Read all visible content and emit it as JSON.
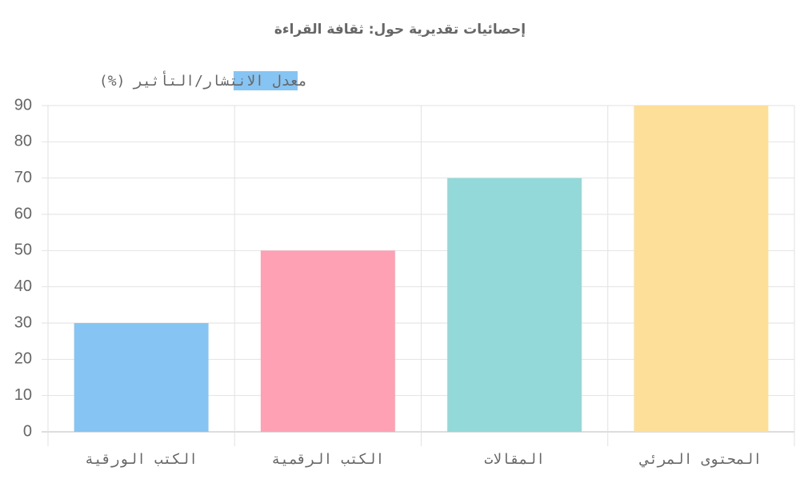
{
  "chart_data": {
    "type": "bar",
    "title": "إحصائيات تقديرية حول: ثقافة القراءة",
    "categories": [
      "الكتب الورقية",
      "الكتب الرقمية",
      "المقالات",
      "المحتوى المرئي"
    ],
    "series": [
      {
        "name": "معدل الانتشار/التأثير (%)",
        "colors": [
          "#86c5f3",
          "#fea1b5",
          "#94d9d9",
          "#fedf9a"
        ],
        "values": [
          30,
          50,
          70,
          90
        ]
      }
    ],
    "ylim": [
      0,
      90
    ],
    "yticks": [
      0,
      10,
      20,
      30,
      40,
      50,
      60,
      70,
      80,
      90
    ],
    "grid": true,
    "legend": "top"
  }
}
